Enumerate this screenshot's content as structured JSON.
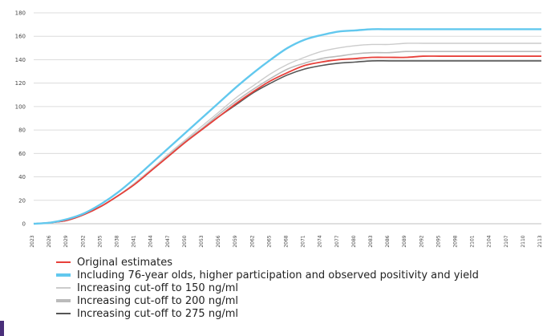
{
  "chart_data": {
    "type": "line",
    "title": "",
    "xlabel": "",
    "ylabel": "",
    "ylim": [
      0,
      180
    ],
    "yticks": [
      0,
      20,
      40,
      60,
      80,
      100,
      120,
      140,
      160,
      180
    ],
    "x_tick_labels": [
      "2023",
      "2026",
      "2029",
      "2032",
      "2035",
      "2038",
      "2041",
      "2044",
      "2047",
      "2050",
      "2053",
      "2056",
      "2059",
      "2062",
      "2065",
      "2068",
      "2071",
      "2074",
      "2077",
      "2080",
      "2083",
      "2086",
      "2089",
      "2092",
      "2095",
      "2098",
      "2101",
      "2104",
      "2107",
      "2110",
      "2113"
    ],
    "x": [
      2023,
      2026,
      2029,
      2032,
      2035,
      2038,
      2041,
      2044,
      2047,
      2050,
      2053,
      2056,
      2059,
      2062,
      2065,
      2068,
      2071,
      2074,
      2077,
      2080,
      2083,
      2086,
      2089,
      2092,
      2095,
      2098,
      2101,
      2104,
      2107,
      2110,
      2113
    ],
    "grid": "horizontal",
    "legend_position": "bottom",
    "series": [
      {
        "name": "Increasing cut-off to 275 ng/ml",
        "color": "#555555",
        "width": 1.6,
        "values": [
          0,
          1,
          3,
          8,
          15,
          24,
          34,
          46,
          58,
          70,
          81,
          92,
          102,
          112,
          120,
          127,
          132,
          135,
          137,
          138,
          139,
          139,
          139,
          139,
          139,
          139,
          139,
          139,
          139,
          139,
          139
        ]
      },
      {
        "name": "Increasing cut-off to 200 ng/ml",
        "color": "#bbbbbb",
        "width": 1.6,
        "values": [
          0,
          1,
          3,
          8,
          15,
          24,
          35,
          47,
          59,
          71,
          82,
          94,
          105,
          115,
          124,
          132,
          137,
          141,
          143,
          145,
          146,
          146,
          147,
          147,
          147,
          147,
          147,
          147,
          147,
          147,
          147
        ]
      },
      {
        "name": "Increasing cut-off to 150 ng/ml",
        "color": "#cccccc",
        "width": 1.4,
        "values": [
          0,
          1,
          3,
          8,
          15,
          24,
          35,
          47,
          60,
          72,
          84,
          96,
          108,
          118,
          128,
          136,
          142,
          147,
          150,
          152,
          153,
          153,
          154,
          154,
          154,
          154,
          154,
          154,
          154,
          154,
          154
        ]
      },
      {
        "name": "Original estimates",
        "color": "#e8403a",
        "width": 1.8,
        "values": [
          0,
          1,
          3,
          8,
          15,
          24,
          34,
          46,
          58,
          70,
          81,
          92,
          103,
          113,
          122,
          129,
          135,
          138,
          140,
          141,
          142,
          142,
          142,
          143,
          143,
          143,
          143,
          143,
          143,
          143,
          143
        ]
      },
      {
        "name": "Including 76-year olds, higher participation and observed positivity and yield",
        "color": "#62c8ee",
        "width": 2.4,
        "values": [
          0,
          1,
          4,
          9,
          17,
          27,
          39,
          52,
          65,
          78,
          91,
          104,
          117,
          129,
          140,
          150,
          157,
          161,
          164,
          165,
          166,
          166,
          166,
          166,
          166,
          166,
          166,
          166,
          166,
          166,
          166
        ]
      }
    ],
    "legend": [
      {
        "label": "Original estimates",
        "color": "#e8403a",
        "thick": 2
      },
      {
        "label": "Including 76-year olds, higher participation and observed positivity and yield",
        "color": "#62c8ee",
        "thick": 4
      },
      {
        "label": "Increasing cut-off to 150 ng/ml",
        "color": "#cccccc",
        "thick": 2
      },
      {
        "label": "Increasing cut-off to 200 ng/ml",
        "color": "#bbbbbb",
        "thick": 4
      },
      {
        "label": "Increasing cut-off to 275 ng/ml",
        "color": "#555555",
        "thick": 2
      }
    ]
  }
}
